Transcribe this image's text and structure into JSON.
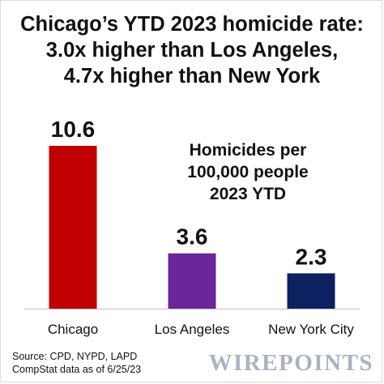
{
  "chart_data": {
    "type": "bar",
    "title": [
      "Chicago’s YTD 2023 homicide rate:",
      "3.0x higher than Los Angeles,",
      "4.7x higher than New York"
    ],
    "annotation": [
      "Homicides per",
      "100,000 people",
      "2023 YTD"
    ],
    "categories": [
      "Chicago",
      "Los Angeles",
      "New York City"
    ],
    "values": [
      10.6,
      3.6,
      2.3
    ],
    "value_labels": [
      "10.6",
      "3.6",
      "2.3"
    ],
    "colors": [
      "#c00000",
      "#6a259a",
      "#0d2160"
    ],
    "ylim": [
      0,
      10.6
    ],
    "grid": false,
    "legend": "none",
    "xlabel": "",
    "ylabel": ""
  },
  "source": [
    "Source: CPD, NYPD, LAPD",
    "CompStat data as of 6/25/23"
  ],
  "logo": "WIREPOINTS"
}
